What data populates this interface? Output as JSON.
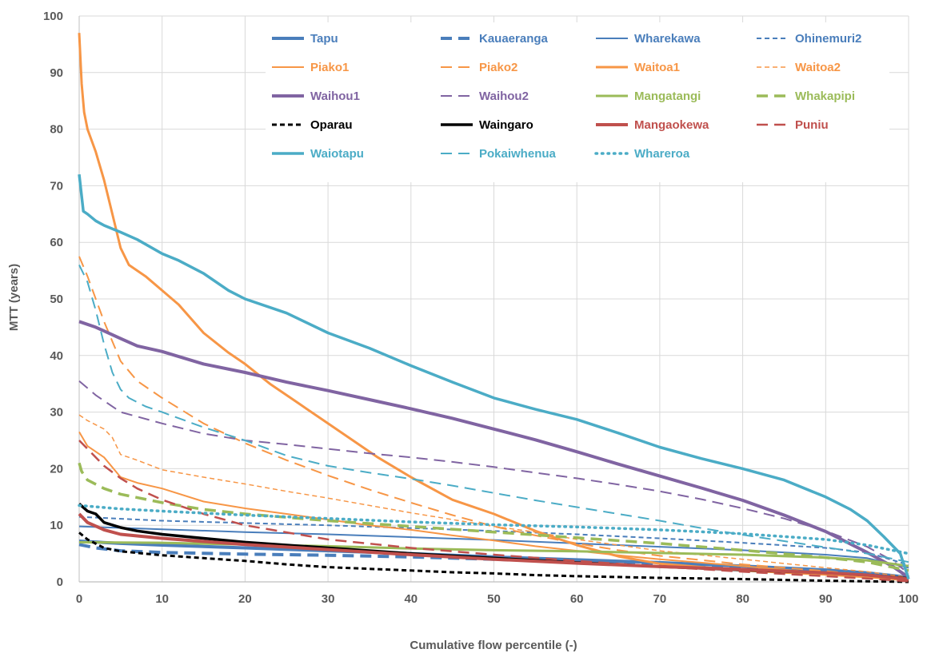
{
  "chart_data": {
    "type": "line",
    "title": "",
    "xlabel": "Cumulative flow percentile (-)",
    "ylabel": "MTT (years)",
    "xlim": [
      0,
      100
    ],
    "ylim": [
      0,
      100
    ],
    "xticks": [
      "0",
      "10",
      "20",
      "30",
      "40",
      "50",
      "60",
      "70",
      "80",
      "90",
      "100"
    ],
    "yticks": [
      "0",
      "10",
      "20",
      "30",
      "40",
      "50",
      "60",
      "70",
      "80",
      "90",
      "100"
    ],
    "grid": true,
    "legend_position": "top-right inside plot",
    "series": [
      {
        "name": "Tapu",
        "color": "#4a7ebb",
        "dash": "solid",
        "width": 4,
        "x": [
          0,
          5,
          10,
          20,
          30,
          40,
          50,
          60,
          70,
          80,
          90,
          95,
          100
        ],
        "y": [
          7.2,
          6.8,
          6.5,
          6.0,
          5.5,
          5.0,
          4.4,
          3.9,
          3.4,
          2.8,
          2.1,
          1.6,
          0.8
        ]
      },
      {
        "name": "Kauaeranga",
        "color": "#4a7ebb",
        "dash": "long",
        "width": 4,
        "x": [
          0,
          2,
          5,
          10,
          20,
          30,
          40,
          50,
          60,
          70,
          80,
          90,
          95,
          100
        ],
        "y": [
          6.6,
          6.0,
          5.5,
          5.2,
          4.9,
          4.7,
          4.4,
          4.0,
          3.5,
          3.0,
          2.5,
          1.9,
          1.4,
          0.6
        ]
      },
      {
        "name": "Wharekawa",
        "color": "#4a7ebb",
        "dash": "solid",
        "width": 2,
        "x": [
          0,
          10,
          20,
          30,
          40,
          50,
          60,
          70,
          80,
          90,
          95,
          100
        ],
        "y": [
          9.8,
          9.3,
          8.8,
          8.4,
          7.9,
          7.4,
          6.8,
          6.2,
          5.6,
          4.8,
          4.2,
          2.5
        ]
      },
      {
        "name": "Ohinemuri2",
        "color": "#4a7ebb",
        "dash": "short",
        "width": 2,
        "x": [
          0,
          10,
          20,
          30,
          40,
          50,
          60,
          70,
          80,
          90,
          95,
          100
        ],
        "y": [
          11.5,
          10.8,
          10.4,
          10.0,
          9.5,
          9.0,
          8.4,
          7.7,
          6.9,
          6.0,
          5.2,
          3.0
        ]
      },
      {
        "name": "Piako1",
        "color": "#f79646",
        "dash": "solid",
        "width": 2,
        "x": [
          0,
          1,
          3,
          5,
          7,
          10,
          15,
          20,
          25,
          30,
          35,
          40,
          45,
          50,
          55,
          60,
          65,
          70,
          80,
          90,
          100
        ],
        "y": [
          26.5,
          24,
          22,
          18.5,
          17.5,
          16.5,
          14.2,
          13.0,
          12.0,
          11.0,
          10.0,
          9.2,
          8.2,
          7.3,
          6.3,
          5.5,
          4.7,
          4.0,
          2.8,
          1.5,
          0.2
        ]
      },
      {
        "name": "Piako2",
        "color": "#f79646",
        "dash": "long",
        "width": 2,
        "x": [
          0,
          1,
          3,
          5,
          7,
          10,
          15,
          20,
          25,
          30,
          35,
          40,
          45,
          50,
          55,
          60,
          65,
          70,
          80,
          90,
          95,
          100
        ],
        "y": [
          57.5,
          54,
          46,
          39,
          35.5,
          32.5,
          28,
          24.5,
          21.5,
          18.8,
          16.3,
          14.0,
          11.8,
          9.8,
          8.2,
          6.8,
          5.6,
          4.6,
          3.1,
          1.9,
          1.2,
          0.3
        ]
      },
      {
        "name": "Waitoa1",
        "color": "#f79646",
        "dash": "solid",
        "width": 3,
        "x": [
          0,
          0.3,
          0.6,
          1,
          2,
          3,
          4,
          5,
          6,
          8,
          10,
          12,
          15,
          18,
          20,
          23,
          26,
          30,
          33,
          36,
          40,
          45,
          50,
          55,
          60,
          65,
          70,
          80,
          90,
          100
        ],
        "y": [
          97,
          88,
          83,
          80,
          76,
          71,
          65,
          59,
          56,
          54,
          51.5,
          49,
          44,
          40.5,
          38.5,
          35,
          32,
          28,
          25,
          22,
          18.5,
          14.5,
          12.0,
          9.0,
          6.5,
          4.5,
          3.2,
          2.0,
          1.3,
          0.4
        ]
      },
      {
        "name": "Waitoa2",
        "color": "#f79646",
        "dash": "short",
        "width": 1.5,
        "x": [
          0,
          1,
          3,
          4,
          5,
          7,
          10,
          15,
          20,
          25,
          30,
          35,
          40,
          45,
          50,
          55,
          60,
          65,
          70,
          80,
          90,
          95,
          100
        ],
        "y": [
          29.5,
          28.5,
          27,
          25.5,
          22.5,
          21.5,
          19.8,
          18.5,
          17.3,
          16.0,
          14.8,
          13.5,
          12.2,
          11.0,
          9.8,
          8.8,
          7.5,
          6.5,
          5.5,
          4.0,
          2.5,
          1.8,
          0.8
        ]
      },
      {
        "name": "Waihou1",
        "color": "#8064a2",
        "dash": "solid",
        "width": 4,
        "x": [
          0,
          2,
          5,
          7,
          10,
          15,
          20,
          25,
          30,
          35,
          40,
          45,
          50,
          55,
          60,
          65,
          70,
          75,
          80,
          85,
          90,
          95,
          98,
          100
        ],
        "y": [
          46,
          45,
          43,
          41.7,
          40.7,
          38.5,
          37,
          35.3,
          33.8,
          32.2,
          30.6,
          28.9,
          27.0,
          25.1,
          23.0,
          20.8,
          18.7,
          16.6,
          14.4,
          11.8,
          8.9,
          5.2,
          2.8,
          0.8
        ]
      },
      {
        "name": "Waihou2",
        "color": "#8064a2",
        "dash": "long",
        "width": 2,
        "x": [
          0,
          2,
          5,
          10,
          15,
          20,
          25,
          30,
          35,
          40,
          45,
          50,
          55,
          60,
          65,
          70,
          75,
          80,
          85,
          90,
          95,
          98,
          100
        ],
        "y": [
          35.5,
          33,
          30,
          28,
          26.2,
          25,
          24.3,
          23.5,
          22.7,
          22.0,
          21.2,
          20.3,
          19.3,
          18.3,
          17.2,
          16.0,
          14.6,
          13.0,
          11.2,
          9.0,
          6.2,
          3.8,
          1.5
        ]
      },
      {
        "name": "Mangatangi",
        "color": "#9bbb59",
        "dash": "solid",
        "width": 3,
        "x": [
          0,
          10,
          20,
          30,
          40,
          50,
          60,
          70,
          80,
          90,
          95,
          100
        ],
        "y": [
          7.0,
          6.9,
          6.6,
          6.3,
          5.9,
          5.6,
          5.4,
          5.1,
          4.8,
          4.3,
          3.8,
          2.8
        ]
      },
      {
        "name": "Whakapipi",
        "color": "#9bbb59",
        "dash": "long",
        "width": 3.5,
        "x": [
          0,
          0.3,
          1,
          3,
          5,
          10,
          15,
          20,
          30,
          40,
          50,
          60,
          70,
          80,
          90,
          95,
          100
        ],
        "y": [
          21,
          19.5,
          18,
          16.5,
          15.5,
          14,
          12.8,
          12.0,
          10.8,
          9.8,
          8.8,
          7.8,
          6.8,
          5.6,
          4.3,
          3.5,
          2.0
        ]
      },
      {
        "name": "Oparau",
        "color": "#000000",
        "dash": "short",
        "width": 3,
        "x": [
          0,
          1,
          3,
          5,
          10,
          15,
          20,
          25,
          30,
          35,
          40,
          45,
          50,
          55,
          60,
          70,
          80,
          90,
          100
        ],
        "y": [
          8.7,
          7.5,
          6.0,
          5.4,
          4.7,
          4.2,
          3.7,
          3.1,
          2.6,
          2.3,
          2.0,
          1.7,
          1.5,
          1.2,
          1.0,
          0.7,
          0.5,
          0.2,
          0.0
        ]
      },
      {
        "name": "Waingaro",
        "color": "#000000",
        "dash": "solid",
        "width": 3.5,
        "x": [
          0,
          1,
          2,
          3,
          5,
          7,
          10,
          15,
          20,
          30,
          40,
          50,
          60,
          70,
          80,
          90,
          95,
          100
        ],
        "y": [
          13.8,
          12.5,
          12.0,
          10.5,
          9.6,
          9.0,
          8.4,
          7.7,
          7.0,
          6.0,
          5.0,
          4.2,
          3.4,
          2.7,
          2.1,
          1.6,
          1.2,
          0.6
        ]
      },
      {
        "name": "Mangaokewa",
        "color": "#c0504d",
        "dash": "solid",
        "width": 4,
        "x": [
          0,
          1,
          3,
          5,
          10,
          20,
          30,
          40,
          50,
          60,
          70,
          80,
          90,
          95,
          100
        ],
        "y": [
          12.0,
          10.5,
          9.2,
          8.4,
          7.7,
          6.6,
          5.7,
          4.8,
          4.0,
          3.3,
          2.7,
          2.2,
          1.6,
          1.2,
          0.5
        ]
      },
      {
        "name": "Puniu",
        "color": "#c0504d",
        "dash": "long",
        "width": 2.5,
        "x": [
          0,
          1,
          3,
          5,
          7,
          10,
          15,
          20,
          30,
          40,
          50,
          60,
          70,
          80,
          90,
          95,
          100
        ],
        "y": [
          25,
          23.5,
          20.5,
          18.3,
          16.5,
          14.5,
          12.0,
          10.0,
          7.5,
          6.0,
          4.8,
          3.7,
          2.7,
          1.8,
          1.0,
          0.6,
          0.1
        ]
      },
      {
        "name": "Waiotapu",
        "color": "#4bacc6",
        "dash": "solid",
        "width": 3.5,
        "x": [
          0,
          0.5,
          1,
          2,
          3,
          5,
          7,
          10,
          12,
          15,
          18,
          20,
          25,
          30,
          35,
          40,
          45,
          50,
          55,
          60,
          65,
          70,
          75,
          80,
          85,
          90,
          93,
          95,
          97,
          99,
          100
        ],
        "y": [
          72,
          65.5,
          65,
          63.8,
          63,
          61.8,
          60.5,
          58,
          56.8,
          54.5,
          51.5,
          50,
          47.5,
          44,
          41.3,
          38.2,
          35.3,
          32.5,
          30.5,
          28.7,
          26.3,
          23.8,
          21.8,
          20.0,
          18.0,
          15.0,
          12.8,
          10.8,
          8.0,
          5.0,
          0.5
        ]
      },
      {
        "name": "Pokaiwhenua",
        "color": "#4bacc6",
        "dash": "long",
        "width": 2,
        "x": [
          0,
          1,
          2,
          3,
          4,
          5,
          6,
          8,
          10,
          15,
          20,
          25,
          30,
          35,
          40,
          45,
          50,
          55,
          60,
          65,
          70,
          75,
          80,
          85,
          90,
          95,
          100
        ],
        "y": [
          56,
          53,
          48,
          42,
          37,
          34,
          32.5,
          31,
          30,
          27.3,
          25,
          22.3,
          20.5,
          19.3,
          18.2,
          17.0,
          15.7,
          14.4,
          13.2,
          12.0,
          10.8,
          9.5,
          8.3,
          7.2,
          6.1,
          5.0,
          3.5
        ]
      },
      {
        "name": "Whareroa",
        "color": "#4bacc6",
        "dash": "dot",
        "width": 3.5,
        "x": [
          0,
          5,
          10,
          20,
          30,
          40,
          50,
          60,
          70,
          80,
          90,
          95,
          100
        ],
        "y": [
          13.5,
          12.9,
          12.5,
          11.8,
          11.2,
          10.6,
          10.1,
          9.7,
          9.2,
          8.5,
          7.5,
          6.5,
          5.0
        ]
      }
    ]
  }
}
